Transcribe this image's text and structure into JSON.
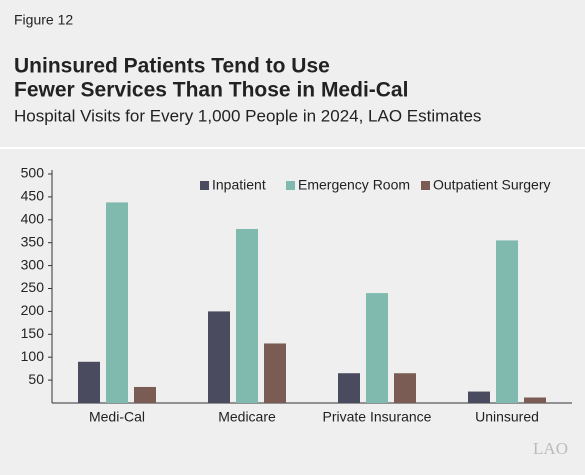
{
  "chart_data": {
    "type": "bar",
    "figure_label": "Figure 12",
    "title": [
      "Uninsured Patients Tend to Use",
      "Fewer Services Than Those in Medi-Cal"
    ],
    "subtitle": "Hospital Visits for Every 1,000 People in 2024, LAO Estimates",
    "categories": [
      "Medi-Cal",
      "Medicare",
      "Private Insurance",
      "Uninsured"
    ],
    "series": [
      {
        "name": "Inpatient",
        "color": "#4b4b5f",
        "values": [
          90,
          200,
          65,
          25
        ]
      },
      {
        "name": "Emergency Room",
        "color": "#80b9ae",
        "values": [
          438,
          380,
          240,
          355
        ]
      },
      {
        "name": "Outpatient Surgery",
        "color": "#7b5c54",
        "values": [
          35,
          130,
          65,
          12
        ]
      }
    ],
    "ylim": [
      0,
      500
    ],
    "yticks": [
      50,
      100,
      150,
      200,
      250,
      300,
      350,
      400,
      450,
      500
    ],
    "legend": "top-right",
    "logo": "LAO"
  }
}
